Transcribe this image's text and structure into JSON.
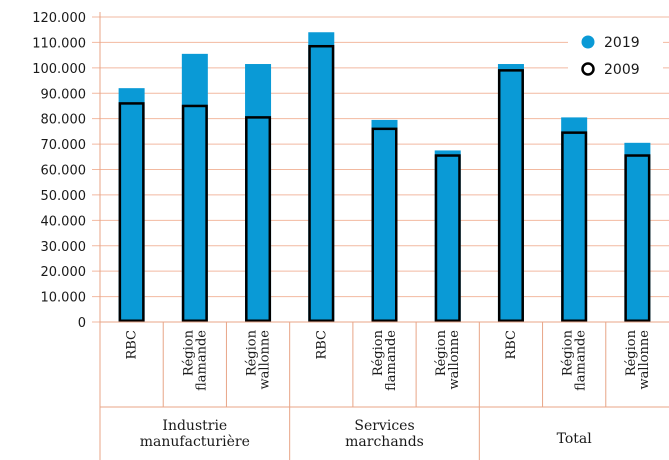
{
  "chart_data": {
    "type": "bar",
    "title": "",
    "xlabel": "",
    "ylabel": "",
    "ylim": [
      0,
      120000
    ],
    "y_ticks": [
      "0",
      "10.000",
      "20.000",
      "30.000",
      "40.000",
      "50.000",
      "60.000",
      "70.000",
      "80.000",
      "90.000",
      "100.000",
      "110.000",
      "120.000"
    ],
    "grid": "horizontal",
    "legend_position": "top-right",
    "groups": [
      {
        "label_lines": [
          "Industrie",
          "manufacturière"
        ]
      },
      {
        "label_lines": [
          "Services",
          "marchands"
        ]
      },
      {
        "label_lines": [
          "Total"
        ]
      }
    ],
    "categories": [
      {
        "group": 0,
        "label_lines": [
          "RBC"
        ]
      },
      {
        "group": 0,
        "label_lines": [
          "Région",
          "flamande"
        ]
      },
      {
        "group": 0,
        "label_lines": [
          "Région",
          "wallonne"
        ]
      },
      {
        "group": 1,
        "label_lines": [
          "RBC"
        ]
      },
      {
        "group": 1,
        "label_lines": [
          "Région",
          "flamande"
        ]
      },
      {
        "group": 1,
        "label_lines": [
          "Région",
          "wallonne"
        ]
      },
      {
        "group": 2,
        "label_lines": [
          "RBC"
        ]
      },
      {
        "group": 2,
        "label_lines": [
          "Région",
          "flamande"
        ]
      },
      {
        "group": 2,
        "label_lines": [
          "Région",
          "wallonne"
        ]
      }
    ],
    "series": [
      {
        "name": "2019",
        "style": "filled",
        "color": "#0a9ad6",
        "values": [
          92000,
          105500,
          101500,
          114000,
          79500,
          67500,
          101500,
          80500,
          70500
        ]
      },
      {
        "name": "2009",
        "style": "outline",
        "color": "#000000",
        "values": [
          86000,
          85000,
          80500,
          108500,
          76000,
          65500,
          99000,
          74500,
          65500
        ]
      }
    ],
    "colors": {
      "bar": "#0a9ad6",
      "outline": "#000000",
      "grid": "#f2b9a0",
      "axis": "#e8a587"
    }
  }
}
